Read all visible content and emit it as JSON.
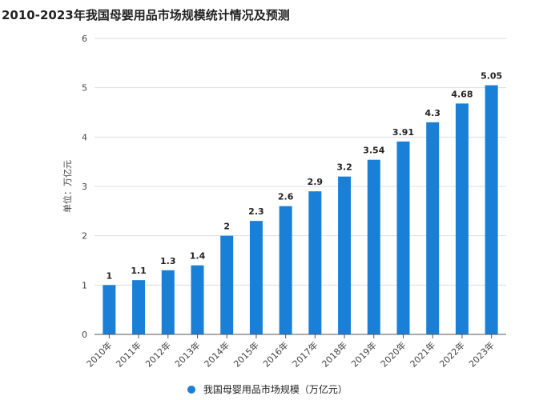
{
  "chart_data": {
    "type": "bar",
    "title": "2010-2023年我国母婴用品市场规模统计情况及预测",
    "ylabel": "单位：万亿元",
    "xlabel": "",
    "categories": [
      "2010年",
      "2011年",
      "2012年",
      "2013年",
      "2014年",
      "2015年",
      "2016年",
      "2017年",
      "2018年",
      "2019年",
      "2020年",
      "2021年",
      "2022年",
      "2023年"
    ],
    "series": [
      {
        "name": "我国母婴用品市场规模（万亿元）",
        "values": [
          1,
          1.1,
          1.3,
          1.4,
          2,
          2.3,
          2.6,
          2.9,
          3.2,
          3.54,
          3.91,
          4.3,
          4.68,
          5.05
        ],
        "labels": [
          "1",
          "1.1",
          "1.3",
          "1.4",
          "2",
          "2.3",
          "2.6",
          "2.9",
          "3.2",
          "3.54",
          "3.91",
          "4.3",
          "4.68",
          "5.05"
        ]
      }
    ],
    "ylim": [
      0,
      6
    ],
    "yticks": [
      "0",
      "1",
      "2",
      "3",
      "4",
      "5",
      "6"
    ],
    "grid": true,
    "legend_position": "bottom-center",
    "colors": {
      "bar": "#1a7fd6",
      "grid": "#dddddd",
      "axis": "#555555"
    }
  }
}
